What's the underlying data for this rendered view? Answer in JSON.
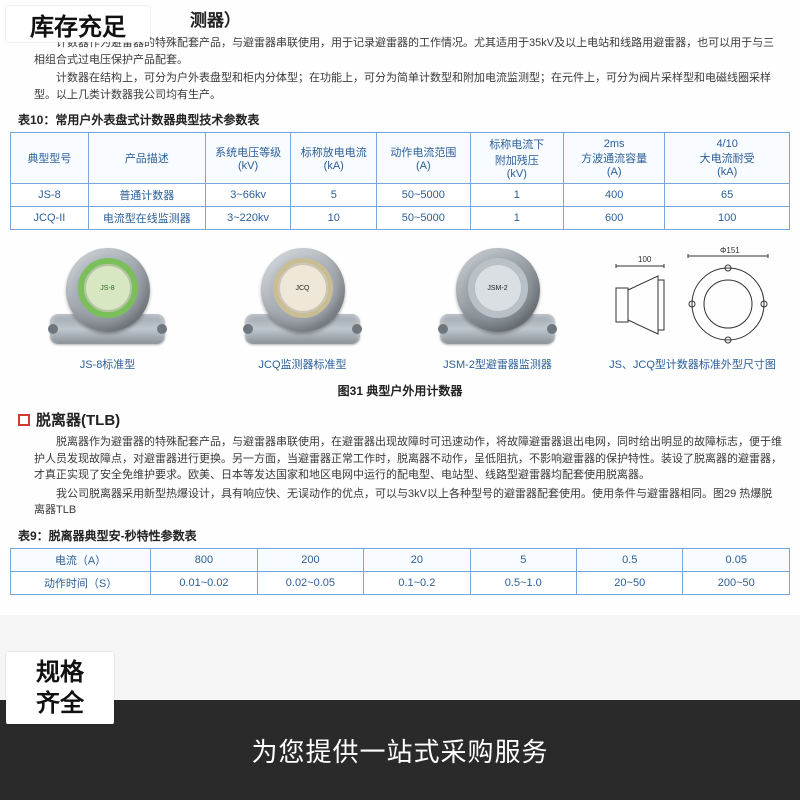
{
  "overlay": {
    "stock_badge": "库存充足",
    "spec_badge_l1": "规格",
    "spec_badge_l2": "齐全",
    "bottom_banner": "为您提供一站式采购服务"
  },
  "section_counter": {
    "title": "测器）",
    "para1": "计数器作为避雷器的特殊配套产品，与避雷器串联使用，用于记录避雷器的工作情况。尤其适用于35kV及以上电站和线路用避雷器，也可以用于与三相组合式过电压保护产品配套。",
    "para2": "计数器在结构上，可分为户外表盘型和柜内分体型；在功能上，可分为简单计数型和附加电流监测型；在元件上，可分为阀片采样型和电磁线圈采样型。以上几类计数器我公司均有生产。",
    "table_caption": "表10：常用户外表盘式计数器典型技术参数表"
  },
  "table_counter": {
    "columns": [
      "典型型号",
      "产品描述",
      "系统电压等级\n(kV)",
      "标称放电电流\n(kA)",
      "动作电流范围\n(A)",
      "标称电流下\n附加残压\n(kV)",
      "2ms\n方波通流容量\n(A)",
      "4/10\n大电流耐受\n(kA)"
    ],
    "rows": [
      [
        "JS-8",
        "普通计数器",
        "3~66kv",
        "5",
        "50~5000",
        "1",
        "400",
        "65"
      ],
      [
        "JCQ-II",
        "电流型在线监测器",
        "3~220kv",
        "10",
        "50~5000",
        "1",
        "600",
        "100"
      ]
    ]
  },
  "products": {
    "items": [
      {
        "label": "JS-8标准型",
        "cap_color": "#9aa1a7",
        "face_bg": "#d6e7c2",
        "face_ring": "#7bbf5a"
      },
      {
        "label": "JCQ监测器标准型",
        "cap_color": "#a7aeb5",
        "face_bg": "#efe8d8",
        "face_ring": "#c9bd96"
      },
      {
        "label": "JSM-2型避雷器监测器",
        "cap_color": "#8f979e",
        "face_bg": "#dadfe3",
        "face_ring": "#b9c1c8"
      }
    ],
    "diagram_label": "JS、JCQ型计数器标准外型尺寸图",
    "figure_caption": "图31 典型户外用计数器"
  },
  "section_tlb": {
    "title": "脱离器(TLB)",
    "para1": "脱离器作为避雷器的特殊配套产品，与避雷器串联使用，在避雷器出现故障时可迅速动作，将故障避雷器退出电网，同时给出明显的故障标志，便于维护人员发现故障点，对避雷器进行更换。另一方面，当避雷器正常工作时，脱离器不动作，呈低阻抗，不影响避雷器的保护特性。装设了脱离器的避雷器，才真正实现了安全免维护要求。欧美、日本等发达国家和地区电网中运行的配电型、电站型、线路型避雷器均配套使用脱离器。",
    "para2": "我公司脱离器采用新型热爆设计，具有响应快、无误动作的优点，可以与3kV以上各种型号的避雷器配套使用。使用条件与避雷器相同。图29 热爆脱离器TLB",
    "table_caption": "表9：脱离器典型安-秒特性参数表"
  },
  "table_tlb": {
    "columns": [
      "电流（A）",
      "800",
      "200",
      "20",
      "5",
      "0.5",
      "0.05"
    ],
    "rows": [
      [
        "动作时间（S）",
        "0.01~0.02",
        "0.02~0.05",
        "0.1~0.2",
        "0.5~1.0",
        "20~50",
        "200~50"
      ]
    ]
  },
  "colors": {
    "table_border": "#7aa7d9",
    "accent_red": "#d13a2e",
    "bottom_bar_bg": "#2a2a2a"
  }
}
